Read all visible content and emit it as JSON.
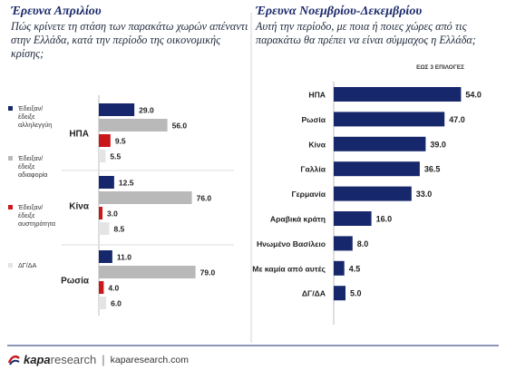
{
  "left": {
    "title": "Έρευνα Απριλίου",
    "subtitle": "Πώς κρίνετε τη στάση των παρακάτω χωρών απέναντι στην Ελλάδα, κατά την περίοδο της οικονομικής κρίσης;"
  },
  "right": {
    "title": "Έρευνα Νοεμβρίου-Δεκεμβρίου",
    "subtitle": "Αυτή την περίοδο, με ποια ή ποιες χώρες από τις παρακάτω θα πρέπει να είναι σύμμαχος η Ελλάδα;",
    "note": "ΕΩΣ 3 ΕΠΙΛΟΓΕΣ"
  },
  "footer": {
    "brand_strong": "kapa",
    "brand_light": "research",
    "url": "kaparesearch.com"
  },
  "colors": {
    "navy": "#17276b",
    "gray": "#b9b9b9",
    "red": "#c8181c",
    "lightgray": "#e4e4e4"
  },
  "chart_data": [
    {
      "type": "bar",
      "orientation": "horizontal",
      "categories": [
        "ΗΠΑ",
        "Κίνα",
        "Ρωσία"
      ],
      "series": [
        {
          "name": "Έδειξαν/ έδειξε αλληλεγγύη",
          "color": "#17276b",
          "values": [
            29.0,
            12.5,
            11.0
          ]
        },
        {
          "name": "Έδειξαν/ έδειξε αδιαφορία",
          "color": "#b9b9b9",
          "values": [
            56.0,
            76.0,
            79.0
          ]
        },
        {
          "name": "Έδειξαν/ έδειξε αυστηρότητα",
          "color": "#c8181c",
          "values": [
            9.5,
            3.0,
            4.0
          ]
        },
        {
          "name": "ΔΓ/ΔΑ",
          "color": "#e4e4e4",
          "values": [
            5.5,
            8.5,
            6.0
          ]
        }
      ],
      "legend": "left",
      "xlim": [
        0,
        80
      ]
    },
    {
      "type": "bar",
      "orientation": "horizontal",
      "categories": [
        "ΗΠΑ",
        "Ρωσία",
        "Κίνα",
        "Γαλλία",
        "Γερμανία",
        "Αραβικά κράτη",
        "Ηνωμένο Βασίλειο",
        "Με καμία από αυτές",
        "ΔΓ/ΔΑ"
      ],
      "values": [
        54.0,
        47.0,
        39.0,
        36.5,
        33.0,
        16.0,
        8.0,
        4.5,
        5.0
      ],
      "color": "#17276b",
      "xlim": [
        0,
        55
      ]
    }
  ]
}
